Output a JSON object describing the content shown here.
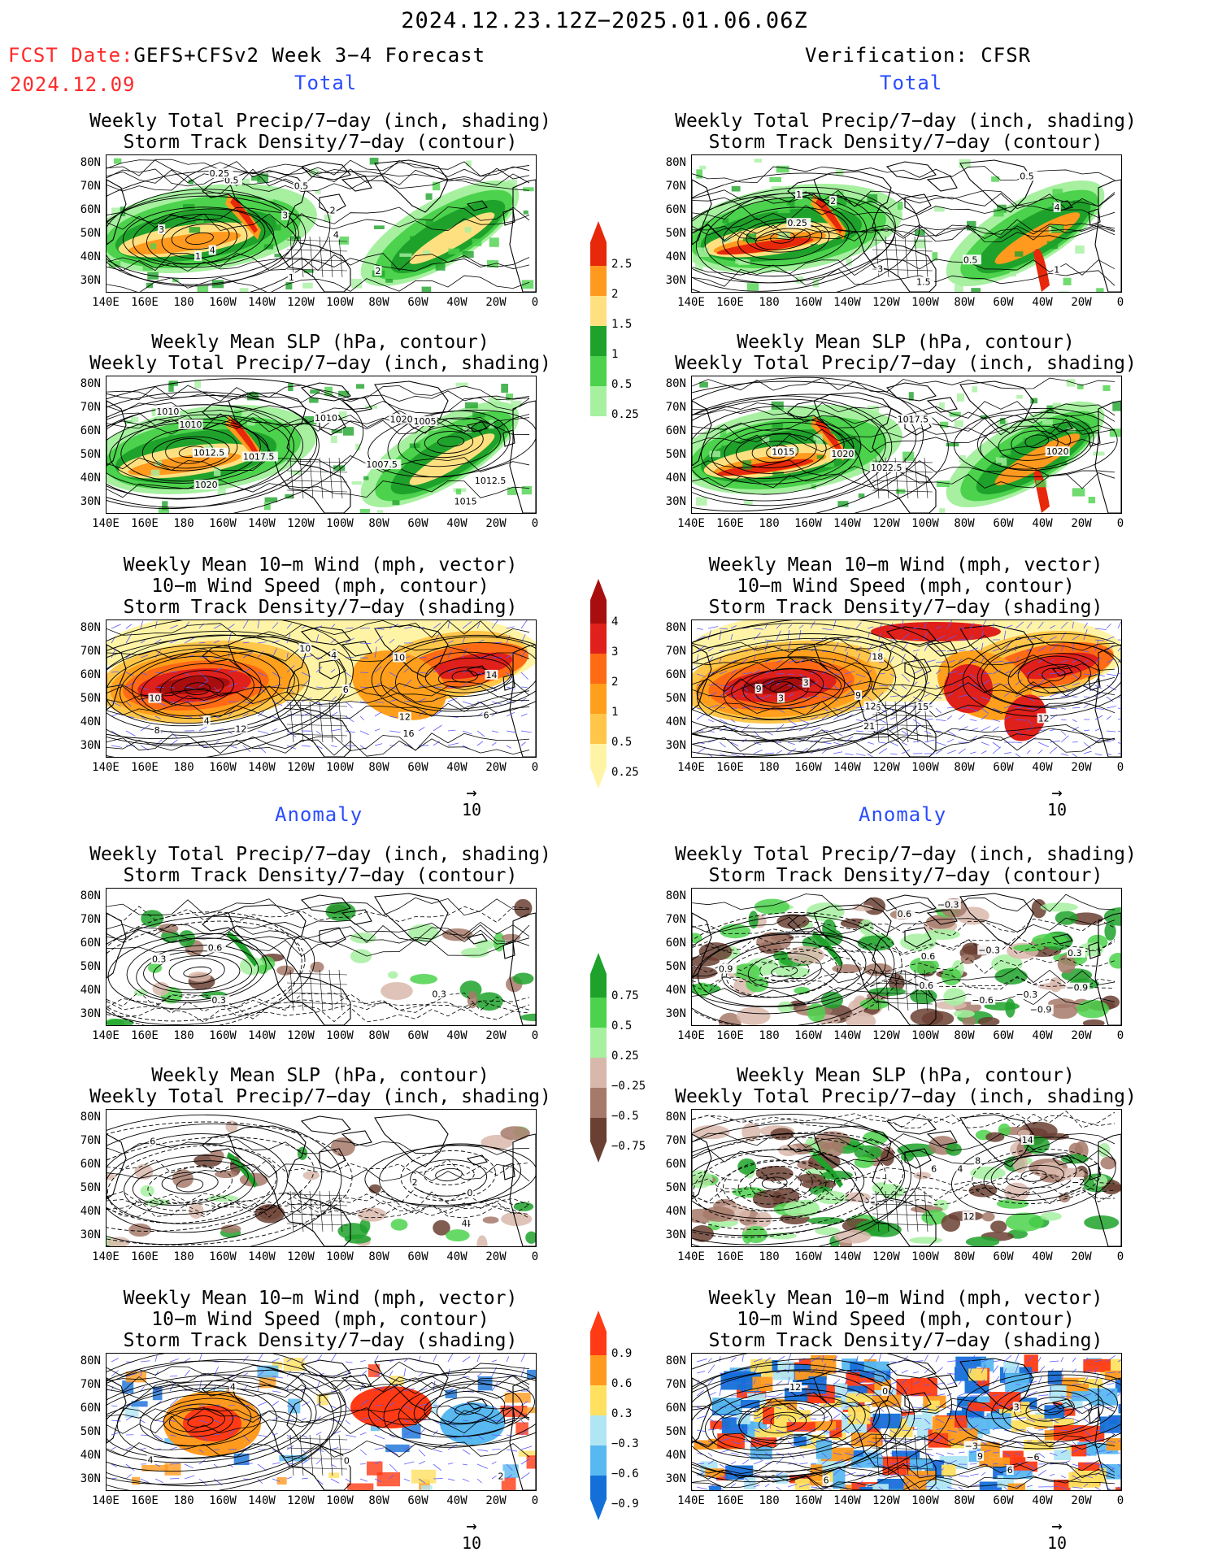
{
  "header": {
    "period": "2024.12.23.12Z−2025.01.06.06Z",
    "fcst_label": "FCST Date:",
    "fcst_model": "GEFS+CFSv2 Week 3−4 Forecast",
    "fcst_date": "2024.12.09",
    "verification": "Verification: CFSR"
  },
  "sections": {
    "total": "Total",
    "anomaly": "Anomaly"
  },
  "panel_titles": {
    "precip_storm": [
      "Weekly Total Precip/7−day (inch, shading)",
      "Storm Track Density/7−day (contour)"
    ],
    "slp_precip": [
      "Weekly Mean SLP (hPa, contour)",
      "Weekly Total Precip/7−day (inch, shading)"
    ],
    "wind_storm": [
      "Weekly Mean 10−m Wind (mph, vector)",
      "10−m Wind Speed (mph, contour)",
      "Storm Track Density/7−day (shading)"
    ]
  },
  "axes": {
    "lat": [
      "80N",
      "70N",
      "60N",
      "50N",
      "40N",
      "30N"
    ],
    "lon": [
      "140E",
      "160E",
      "180",
      "160W",
      "140W",
      "120W",
      "100W",
      "80W",
      "60W",
      "40W",
      "20W",
      "0"
    ]
  },
  "colorbars": {
    "precip_total": {
      "labels": [
        "2.5",
        "2",
        "1.5",
        "1",
        "0.5",
        "0.25"
      ],
      "colors": [
        "#e8280a",
        "#ff9a1e",
        "#ffe080",
        "#1fa22b",
        "#4cd24c",
        "#a6f0a0"
      ]
    },
    "storm_total": {
      "labels": [
        "4",
        "3",
        "2",
        "1",
        "0.5",
        "0.25"
      ],
      "colors": [
        "#a80e0e",
        "#e0201a",
        "#ff6a14",
        "#ff9f1c",
        "#ffc64a",
        "#fff4a6"
      ]
    },
    "precip_anom": {
      "labels": [
        "0.75",
        "0.5",
        "0.25",
        "−0.25",
        "−0.5",
        "−0.75"
      ],
      "colors": [
        "#1fa22b",
        "#4cd24c",
        "#a6f0a0",
        "#d9b8ac",
        "#a67a6a",
        "#6a4032"
      ]
    },
    "storm_anom": {
      "labels": [
        "0.9",
        "0.6",
        "0.3",
        "−0.3",
        "−0.6",
        "−0.9"
      ],
      "colors": [
        "#ff3a14",
        "#ff9a1e",
        "#ffe060",
        "#b0e6f4",
        "#58b8f0",
        "#1470d8"
      ]
    }
  },
  "vector_ref": "10",
  "contour_labels": {
    "fcst_total_precip_storm": [
      "1",
      "2",
      "4",
      "3",
      "0.5",
      "0.25",
      "1",
      "3",
      "4",
      "2",
      "0.5"
    ],
    "fcst_total_slp_precip": [
      "1015",
      "1012.5",
      "1007.5",
      "1010",
      "1012.5",
      "1010",
      "1020",
      "1017.5",
      "1005",
      "1010",
      "1020"
    ],
    "fcst_total_wind": [
      "4",
      "10",
      "12",
      "8",
      "6",
      "10",
      "6",
      "4",
      "12",
      "10",
      "14",
      "16"
    ],
    "verif_total_precip_storm": [
      "0.5",
      "0.25",
      "4",
      "3",
      "1",
      "1",
      "2",
      "0.5",
      "1.5"
    ],
    "verif_total_slp_precip": [
      "1022.5",
      "1020",
      "1020",
      "1017.5",
      "1015"
    ],
    "verif_total_wind": [
      "3",
      "6",
      "12",
      "15",
      "18",
      "21",
      "9",
      "12",
      "9",
      "3"
    ],
    "fcst_anom_precip_storm": [
      "0.6",
      "0.3",
      "0.3",
      "0.3"
    ],
    "fcst_anom_slp_precip": [
      "0",
      "2",
      "4",
      "6",
      "4"
    ],
    "fcst_anom_wind": [
      "0",
      "4",
      "2",
      "4"
    ],
    "verif_anom_precip_storm": [
      "0.3",
      "0.6",
      "−0.9",
      "−0.3",
      "−0.6",
      "0.6",
      "0.9",
      "−0.3",
      "−0.3",
      "0.6",
      "−0.9"
    ],
    "verif_anom_slp_precip": [
      "8",
      "12",
      "14",
      "4",
      "−2",
      "6"
    ],
    "verif_anom_wind": [
      "0",
      "6",
      "3",
      "9",
      "12",
      "−3",
      "−6",
      "6"
    ]
  }
}
